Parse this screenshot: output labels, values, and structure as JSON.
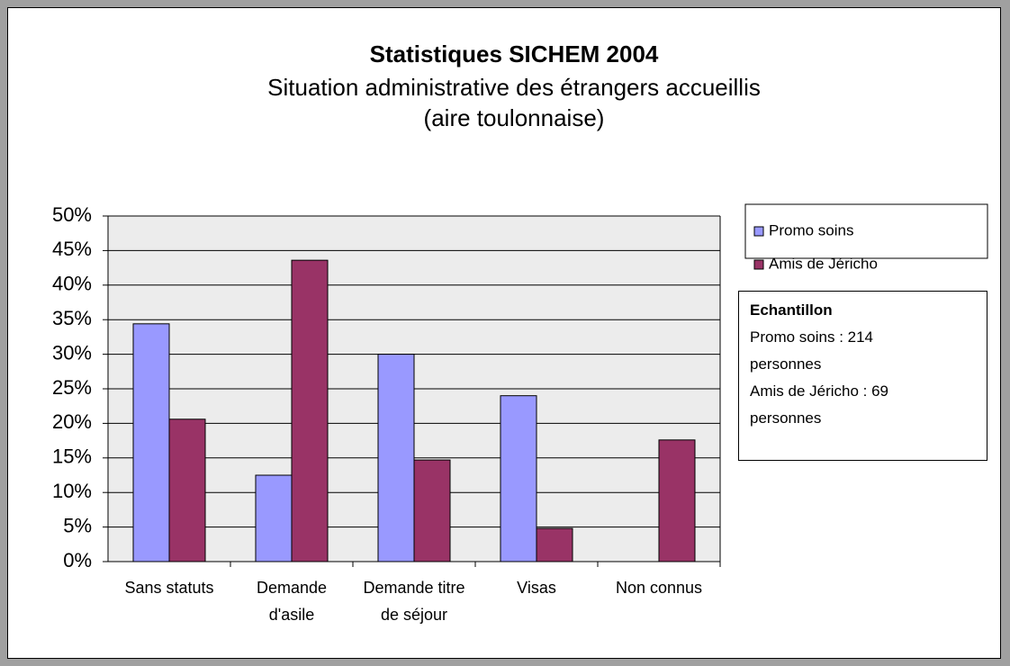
{
  "chart_data": {
    "type": "bar",
    "title": "Statistiques SICHEM  2004",
    "subtitle": [
      "Situation administrative des étrangers accueillis",
      "(aire toulonnaise)"
    ],
    "categories": [
      "Sans statuts",
      "Demande d'asile",
      "Demande titre de séjour",
      "Visas",
      "Non connus"
    ],
    "series": [
      {
        "name": "Promo soins",
        "color": "#9999ff",
        "values": [
          34.4,
          12.5,
          30,
          24,
          null
        ]
      },
      {
        "name": "Amis de Jéricho",
        "color": "#993366",
        "values": [
          20.6,
          43.6,
          14.7,
          4.8,
          17.6
        ]
      }
    ],
    "ylim": [
      0,
      50
    ],
    "yticks": [
      {
        "value": 0,
        "label": "0%"
      },
      {
        "value": 5,
        "label": "5%"
      },
      {
        "value": 10,
        "label": "10%"
      },
      {
        "value": 15,
        "label": "15%"
      },
      {
        "value": 20,
        "label": "20%"
      },
      {
        "value": 25,
        "label": "25%"
      },
      {
        "value": 30,
        "label": "30%"
      },
      {
        "value": 35,
        "label": "35%"
      },
      {
        "value": 40,
        "label": "40%"
      },
      {
        "value": 45,
        "label": "45%"
      },
      {
        "value": 50,
        "label": "50%"
      }
    ],
    "grid": true,
    "legend": "right",
    "sample": {
      "title": "Echantillon",
      "lines": [
        "Promo soins : 214 personnes",
        "Amis de Jéricho : 69 personnes"
      ]
    }
  }
}
